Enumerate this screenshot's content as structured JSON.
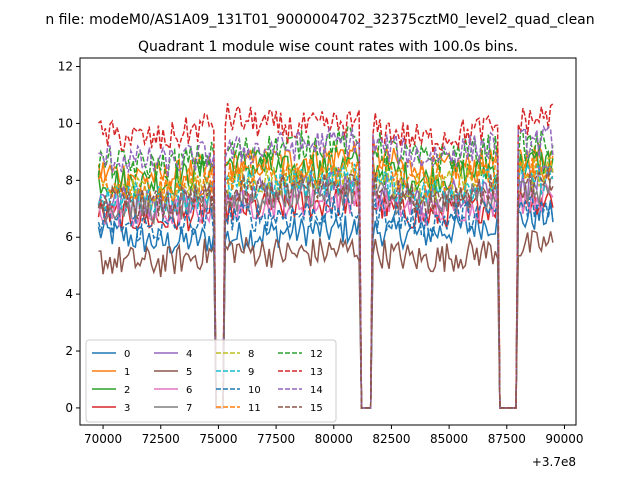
{
  "figure": {
    "suptitle": "n file: modeM0/AS1A09_131T01_9000004702_32375cztM0_level2_quad_clean",
    "axis_offset_label": "+3.7e8"
  },
  "chart_data": {
    "type": "line",
    "title": "Quadrant 1 module wise count rates with 100.0s bins.",
    "xlabel": "",
    "ylabel": "",
    "x_offset": 370000000,
    "xlim": [
      69000,
      90500
    ],
    "ylim": [
      -0.6,
      12.3
    ],
    "xticks": [
      70000,
      72500,
      75000,
      77500,
      80000,
      82500,
      85000,
      87500,
      90000
    ],
    "xtick_labels": [
      "70000",
      "72500",
      "75000",
      "77500",
      "80000",
      "82500",
      "85000",
      "87500",
      "90000"
    ],
    "yticks": [
      0,
      2,
      4,
      6,
      8,
      10,
      12
    ],
    "ytick_labels": [
      "0",
      "2",
      "4",
      "6",
      "8",
      "10",
      "12"
    ],
    "grid": false,
    "legend": {
      "position": "lower-left",
      "columns": 4
    },
    "x_start": 69800,
    "x_end": 89500,
    "bin": 100,
    "gaps": [
      {
        "from": 74900,
        "to": 75200,
        "value": 0
      },
      {
        "from": 81200,
        "to": 81600,
        "value": 0
      },
      {
        "from": 87200,
        "to": 87900,
        "value": 0
      }
    ],
    "series": [
      {
        "name": "0",
        "color": "#1f77b4",
        "dash": "solid",
        "levels": [
          6.2,
          5.8,
          6.0,
          6.2,
          6.3,
          6.1,
          6.5,
          6.8
        ]
      },
      {
        "name": "1",
        "color": "#ff7f0e",
        "dash": "solid",
        "levels": [
          8.3,
          8.1,
          8.5,
          8.7,
          9.0,
          8.3,
          8.6,
          8.9
        ]
      },
      {
        "name": "2",
        "color": "#2ca02c",
        "dash": "solid",
        "levels": [
          8.0,
          7.9,
          8.6,
          8.3,
          8.6,
          8.0,
          8.4,
          8.7
        ]
      },
      {
        "name": "3",
        "color": "#d62728",
        "dash": "solid",
        "levels": [
          6.8,
          6.6,
          7.0,
          7.1,
          7.3,
          6.7,
          7.1,
          7.4
        ]
      },
      {
        "name": "4",
        "color": "#9467bd",
        "dash": "solid",
        "levels": [
          7.4,
          7.2,
          7.6,
          7.8,
          8.0,
          7.3,
          7.8,
          8.0
        ]
      },
      {
        "name": "5",
        "color": "#8c564b",
        "dash": "solid",
        "levels": [
          5.2,
          5.1,
          5.6,
          5.4,
          5.6,
          5.2,
          5.5,
          5.8
        ]
      },
      {
        "name": "6",
        "color": "#e377c2",
        "dash": "solid",
        "levels": [
          6.9,
          6.8,
          7.1,
          7.2,
          7.4,
          6.9,
          7.2,
          7.5
        ]
      },
      {
        "name": "7",
        "color": "#7f7f7f",
        "dash": "solid",
        "levels": [
          7.1,
          7.0,
          7.3,
          7.5,
          7.7,
          7.1,
          7.5,
          7.7
        ]
      },
      {
        "name": "8",
        "color": "#bcbd22",
        "dash": "dashed",
        "levels": [
          7.7,
          7.6,
          7.9,
          8.1,
          8.3,
          7.7,
          8.1,
          8.3
        ]
      },
      {
        "name": "9",
        "color": "#17becf",
        "dash": "dashed",
        "levels": [
          7.5,
          7.3,
          7.7,
          7.9,
          8.1,
          7.5,
          7.9,
          8.1
        ]
      },
      {
        "name": "10",
        "color": "#1f77b4",
        "dash": "dashed",
        "levels": [
          6.5,
          6.3,
          6.7,
          6.8,
          7.0,
          6.5,
          6.9,
          7.1
        ]
      },
      {
        "name": "11",
        "color": "#ff7f0e",
        "dash": "dashed",
        "levels": [
          7.9,
          7.7,
          8.1,
          8.3,
          8.5,
          7.9,
          8.3,
          8.5
        ]
      },
      {
        "name": "12",
        "color": "#2ca02c",
        "dash": "dashed",
        "levels": [
          8.6,
          8.5,
          9.0,
          9.2,
          9.4,
          8.7,
          9.1,
          9.3
        ]
      },
      {
        "name": "13",
        "color": "#d62728",
        "dash": "dashed",
        "levels": [
          9.6,
          9.4,
          10.2,
          9.8,
          10.0,
          9.4,
          9.8,
          10.3
        ]
      },
      {
        "name": "14",
        "color": "#9467bd",
        "dash": "dashed",
        "levels": [
          8.8,
          8.6,
          9.0,
          9.2,
          9.4,
          8.8,
          9.2,
          9.4
        ]
      },
      {
        "name": "15",
        "color": "#8c564b",
        "dash": "dashed",
        "levels": [
          7.3,
          7.1,
          7.5,
          7.7,
          7.9,
          7.3,
          7.7,
          7.9
        ]
      }
    ]
  }
}
